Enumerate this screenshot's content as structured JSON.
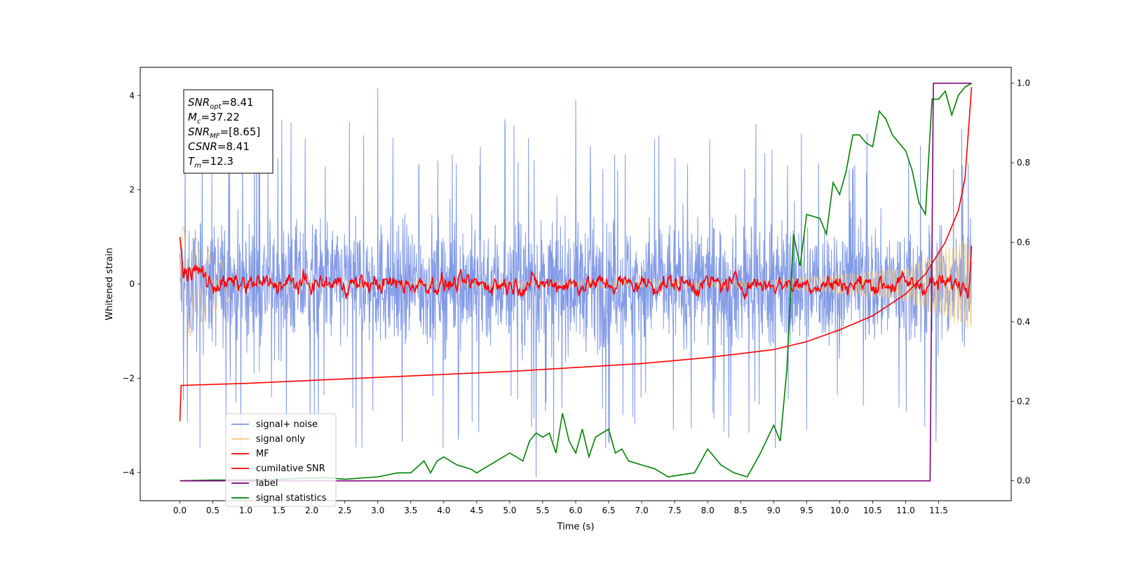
{
  "chart_data": {
    "type": "line",
    "xlabel": "Time (s)",
    "ylabel": "Whitened strain",
    "xlim": [
      -0.6,
      12.6
    ],
    "ylim": [
      -4.6,
      4.6
    ],
    "y2lim": [
      -0.05,
      1.04
    ],
    "x_ticks": [
      0.0,
      0.5,
      1.0,
      1.5,
      2.0,
      2.5,
      3.0,
      3.5,
      4.0,
      4.5,
      5.0,
      5.5,
      6.0,
      6.5,
      7.0,
      7.5,
      8.0,
      8.5,
      9.0,
      9.5,
      10.0,
      10.5,
      11.0,
      11.5
    ],
    "x_tick_labels": [
      "0.0",
      "0.5",
      "1.0",
      "1.5",
      "2.0",
      "2.5",
      "3.0",
      "3.5",
      "4.0",
      "4.5",
      "5.0",
      "5.5",
      "6.0",
      "6.5",
      "7.0",
      "7.5",
      "8.0",
      "8.5",
      "9.0",
      "9.5",
      "10.0",
      "10.5",
      "11.0",
      "11.5"
    ],
    "y_ticks": [
      -4,
      -2,
      0,
      2,
      4
    ],
    "y_tick_labels": [
      "−4",
      "−2",
      "0",
      "2",
      "4"
    ],
    "y2_ticks": [
      0.0,
      0.2,
      0.4,
      0.6,
      0.8,
      1.0
    ],
    "y2_tick_labels": [
      "0.0",
      "0.2",
      "0.4",
      "0.6",
      "0.8",
      "1.0"
    ],
    "grid": false,
    "legend_position": "lower-left",
    "annotation_lines": [
      {
        "base": "SNR",
        "sub": "opt",
        "value": "=8.41"
      },
      {
        "base": "M",
        "sub": "c",
        "value": "=37.22"
      },
      {
        "base": "SNR",
        "sub": "MF",
        "value": "=[8.65]"
      },
      {
        "base": "CSNR",
        "sub": "",
        "value": "=8.41"
      },
      {
        "base": "T",
        "sub": "m",
        "value": "=12.3"
      }
    ],
    "series": [
      {
        "name": "signal+ noise",
        "axis": "left",
        "color": "#7b95e6",
        "x_range": [
          0.0,
          12.0
        ],
        "typical_range": [
          -2.5,
          2.5
        ],
        "spikes": [
          [
            3.0,
            4.15
          ],
          [
            5.4,
            -4.1
          ],
          [
            6.0,
            3.9
          ],
          [
            1.2,
            3.2
          ],
          [
            9.5,
            -3.1
          ]
        ]
      },
      {
        "name": "signal only",
        "axis": "left",
        "color": "#f5c97a",
        "x_range": [
          0.0,
          12.0
        ],
        "envelope": [
          [
            0.0,
            1.3
          ],
          [
            1.0,
            0.05
          ],
          [
            9.0,
            0.08
          ],
          [
            11.0,
            0.35
          ],
          [
            12.0,
            1.0
          ]
        ]
      },
      {
        "name": "MF",
        "axis": "left",
        "color": "#ff0000",
        "x_range": [
          0.0,
          12.0
        ],
        "start": [
          0.0,
          1.0
        ],
        "end": [
          12.0,
          1.0
        ],
        "noise_amplitude": 0.15
      },
      {
        "name": "cumilative SNR",
        "axis": "right",
        "color": "#ff0000",
        "x": [
          0.0,
          0.02,
          1.0,
          3.0,
          5.0,
          7.0,
          8.0,
          9.0,
          9.5,
          10.0,
          10.5,
          11.0,
          11.3,
          11.6,
          11.8,
          11.9,
          12.0
        ],
        "y": [
          0.15,
          0.24,
          0.245,
          0.26,
          0.275,
          0.295,
          0.31,
          0.33,
          0.35,
          0.38,
          0.415,
          0.47,
          0.52,
          0.6,
          0.68,
          0.76,
          0.99
        ]
      },
      {
        "name": "label",
        "axis": "right",
        "color": "#800080",
        "x": [
          0.0,
          11.37,
          11.42,
          12.0
        ],
        "y": [
          0.0,
          0.0,
          1.0,
          1.0
        ]
      },
      {
        "name": "signal statistics",
        "axis": "right",
        "color": "#008000",
        "x": [
          0.0,
          0.5,
          1.0,
          1.5,
          2.0,
          2.2,
          2.5,
          3.0,
          3.3,
          3.5,
          3.7,
          3.8,
          3.9,
          4.0,
          4.2,
          4.4,
          4.5,
          4.6,
          4.8,
          5.0,
          5.2,
          5.3,
          5.4,
          5.5,
          5.6,
          5.7,
          5.8,
          5.9,
          6.0,
          6.1,
          6.2,
          6.3,
          6.4,
          6.5,
          6.6,
          6.7,
          6.8,
          7.0,
          7.2,
          7.4,
          7.6,
          7.8,
          8.0,
          8.2,
          8.4,
          8.6,
          8.8,
          9.0,
          9.1,
          9.2,
          9.3,
          9.4,
          9.5,
          9.7,
          9.8,
          9.9,
          10.0,
          10.1,
          10.2,
          10.3,
          10.4,
          10.5,
          10.6,
          10.7,
          10.8,
          11.0,
          11.1,
          11.2,
          11.3,
          11.4,
          11.5,
          11.6,
          11.7,
          11.8,
          11.9,
          12.0
        ],
        "y": [
          0.0,
          0.002,
          0.002,
          0.004,
          0.007,
          0.008,
          0.004,
          0.01,
          0.02,
          0.02,
          0.05,
          0.02,
          0.05,
          0.06,
          0.04,
          0.03,
          0.02,
          0.03,
          0.05,
          0.07,
          0.05,
          0.1,
          0.12,
          0.11,
          0.12,
          0.07,
          0.17,
          0.1,
          0.07,
          0.13,
          0.06,
          0.11,
          0.12,
          0.13,
          0.07,
          0.08,
          0.05,
          0.04,
          0.03,
          0.01,
          0.015,
          0.02,
          0.08,
          0.04,
          0.02,
          0.01,
          0.07,
          0.14,
          0.1,
          0.28,
          0.62,
          0.54,
          0.67,
          0.66,
          0.62,
          0.75,
          0.72,
          0.78,
          0.87,
          0.87,
          0.85,
          0.84,
          0.93,
          0.91,
          0.87,
          0.83,
          0.78,
          0.7,
          0.67,
          0.96,
          0.96,
          0.98,
          0.92,
          0.97,
          0.99,
          1.0
        ]
      }
    ]
  }
}
